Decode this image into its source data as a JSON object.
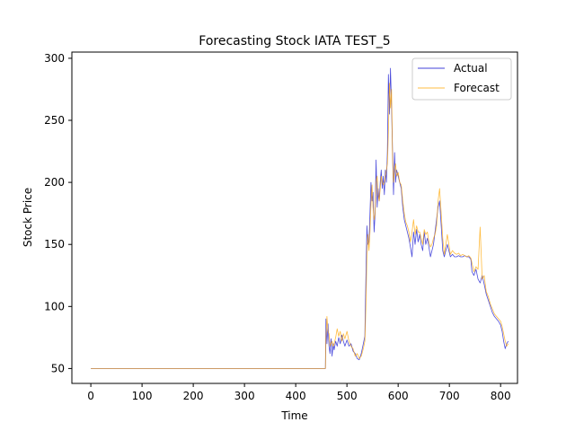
{
  "chart_data": {
    "type": "line",
    "title": "Forecasting Stock IATA TEST_5",
    "xlabel": "Time",
    "ylabel": "Stock Price",
    "xlim": [
      -37,
      833
    ],
    "ylim": [
      38,
      305
    ],
    "xticks": [
      0,
      100,
      200,
      300,
      400,
      500,
      600,
      700,
      800
    ],
    "yticks": [
      50,
      100,
      150,
      200,
      250,
      300
    ],
    "grid": false,
    "legend_position": "top-right",
    "series": [
      {
        "name": "Actual",
        "color": "#0000cc",
        "points": [
          [
            0,
            50
          ],
          [
            100,
            50
          ],
          [
            200,
            50
          ],
          [
            300,
            50
          ],
          [
            400,
            50
          ],
          [
            458,
            50
          ],
          [
            459,
            90
          ],
          [
            461,
            70
          ],
          [
            463,
            86
          ],
          [
            465,
            68
          ],
          [
            467,
            62
          ],
          [
            469,
            74
          ],
          [
            471,
            60
          ],
          [
            473,
            70
          ],
          [
            475,
            65
          ],
          [
            478,
            72
          ],
          [
            481,
            68
          ],
          [
            484,
            75
          ],
          [
            487,
            70
          ],
          [
            490,
            77
          ],
          [
            493,
            72
          ],
          [
            496,
            68
          ],
          [
            500,
            73
          ],
          [
            504,
            68
          ],
          [
            508,
            70
          ],
          [
            512,
            64
          ],
          [
            516,
            62
          ],
          [
            520,
            58
          ],
          [
            524,
            57
          ],
          [
            528,
            62
          ],
          [
            532,
            70
          ],
          [
            535,
            76
          ],
          [
            537,
            120
          ],
          [
            539,
            165
          ],
          [
            541,
            150
          ],
          [
            543,
            152
          ],
          [
            545,
            175
          ],
          [
            547,
            200
          ],
          [
            549,
            185
          ],
          [
            551,
            192
          ],
          [
            553,
            160
          ],
          [
            555,
            175
          ],
          [
            557,
            218
          ],
          [
            559,
            180
          ],
          [
            561,
            195
          ],
          [
            563,
            185
          ],
          [
            565,
            200
          ],
          [
            567,
            210
          ],
          [
            569,
            195
          ],
          [
            571,
            205
          ],
          [
            573,
            190
          ],
          [
            575,
            210
          ],
          [
            577,
            200
          ],
          [
            579,
            225
          ],
          [
            581,
            287
          ],
          [
            583,
            255
          ],
          [
            585,
            292
          ],
          [
            587,
            262
          ],
          [
            589,
            225
          ],
          [
            591,
            190
          ],
          [
            593,
            224
          ],
          [
            595,
            200
          ],
          [
            597,
            210
          ],
          [
            600,
            205
          ],
          [
            603,
            200
          ],
          [
            606,
            195
          ],
          [
            609,
            180
          ],
          [
            612,
            170
          ],
          [
            615,
            165
          ],
          [
            618,
            160
          ],
          [
            621,
            155
          ],
          [
            624,
            148
          ],
          [
            627,
            140
          ],
          [
            630,
            160
          ],
          [
            633,
            150
          ],
          [
            636,
            162
          ],
          [
            639,
            152
          ],
          [
            642,
            158
          ],
          [
            645,
            150
          ],
          [
            648,
            145
          ],
          [
            651,
            160
          ],
          [
            654,
            150
          ],
          [
            657,
            155
          ],
          [
            660,
            148
          ],
          [
            663,
            140
          ],
          [
            666,
            145
          ],
          [
            669,
            150
          ],
          [
            672,
            160
          ],
          [
            675,
            170
          ],
          [
            678,
            180
          ],
          [
            681,
            185
          ],
          [
            684,
            165
          ],
          [
            687,
            145
          ],
          [
            690,
            140
          ],
          [
            693,
            145
          ],
          [
            696,
            150
          ],
          [
            699,
            145
          ],
          [
            702,
            140
          ],
          [
            706,
            142
          ],
          [
            710,
            140
          ],
          [
            714,
            140
          ],
          [
            718,
            141
          ],
          [
            722,
            140
          ],
          [
            726,
            140
          ],
          [
            730,
            141
          ],
          [
            734,
            140
          ],
          [
            738,
            140
          ],
          [
            742,
            138
          ],
          [
            744,
            128
          ],
          [
            748,
            125
          ],
          [
            752,
            130
          ],
          [
            756,
            122
          ],
          [
            760,
            119
          ],
          [
            764,
            125
          ],
          [
            768,
            118
          ],
          [
            772,
            110
          ],
          [
            776,
            105
          ],
          [
            780,
            100
          ],
          [
            784,
            95
          ],
          [
            788,
            92
          ],
          [
            792,
            90
          ],
          [
            796,
            88
          ],
          [
            800,
            85
          ],
          [
            803,
            80
          ],
          [
            806,
            72
          ],
          [
            809,
            66
          ],
          [
            812,
            70
          ],
          [
            815,
            72
          ]
        ]
      },
      {
        "name": "Forecast",
        "color": "#ffa500",
        "points": [
          [
            0,
            50
          ],
          [
            100,
            50
          ],
          [
            200,
            50
          ],
          [
            300,
            50
          ],
          [
            400,
            50
          ],
          [
            458,
            50
          ],
          [
            459,
            75
          ],
          [
            461,
            92
          ],
          [
            463,
            80
          ],
          [
            465,
            78
          ],
          [
            467,
            68
          ],
          [
            469,
            70
          ],
          [
            471,
            72
          ],
          [
            473,
            68
          ],
          [
            475,
            70
          ],
          [
            478,
            75
          ],
          [
            481,
            82
          ],
          [
            484,
            76
          ],
          [
            487,
            80
          ],
          [
            490,
            72
          ],
          [
            493,
            78
          ],
          [
            496,
            74
          ],
          [
            500,
            80
          ],
          [
            504,
            72
          ],
          [
            508,
            68
          ],
          [
            512,
            66
          ],
          [
            516,
            60
          ],
          [
            520,
            62
          ],
          [
            524,
            58
          ],
          [
            528,
            60
          ],
          [
            532,
            66
          ],
          [
            535,
            72
          ],
          [
            537,
            98
          ],
          [
            539,
            140
          ],
          [
            541,
            158
          ],
          [
            543,
            145
          ],
          [
            545,
            160
          ],
          [
            547,
            182
          ],
          [
            549,
            198
          ],
          [
            551,
            180
          ],
          [
            553,
            170
          ],
          [
            555,
            175
          ],
          [
            557,
            200
          ],
          [
            559,
            205
          ],
          [
            561,
            190
          ],
          [
            563,
            185
          ],
          [
            565,
            195
          ],
          [
            567,
            205
          ],
          [
            569,
            200
          ],
          [
            571,
            198
          ],
          [
            573,
            200
          ],
          [
            575,
            205
          ],
          [
            577,
            210
          ],
          [
            579,
            215
          ],
          [
            581,
            240
          ],
          [
            583,
            280
          ],
          [
            585,
            260
          ],
          [
            587,
            275
          ],
          [
            589,
            220
          ],
          [
            591,
            200
          ],
          [
            593,
            210
          ],
          [
            595,
            215
          ],
          [
            597,
            205
          ],
          [
            600,
            208
          ],
          [
            603,
            200
          ],
          [
            606,
            198
          ],
          [
            609,
            185
          ],
          [
            612,
            175
          ],
          [
            615,
            168
          ],
          [
            618,
            165
          ],
          [
            621,
            160
          ],
          [
            624,
            152
          ],
          [
            627,
            160
          ],
          [
            630,
            170
          ],
          [
            633,
            158
          ],
          [
            636,
            165
          ],
          [
            639,
            160
          ],
          [
            642,
            160
          ],
          [
            645,
            155
          ],
          [
            648,
            150
          ],
          [
            651,
            162
          ],
          [
            654,
            158
          ],
          [
            657,
            160
          ],
          [
            660,
            152
          ],
          [
            663,
            148
          ],
          [
            666,
            150
          ],
          [
            669,
            155
          ],
          [
            672,
            158
          ],
          [
            675,
            165
          ],
          [
            678,
            185
          ],
          [
            681,
            195
          ],
          [
            684,
            175
          ],
          [
            687,
            155
          ],
          [
            690,
            142
          ],
          [
            693,
            150
          ],
          [
            696,
            158
          ],
          [
            699,
            150
          ],
          [
            702,
            142
          ],
          [
            706,
            145
          ],
          [
            710,
            143
          ],
          [
            714,
            142
          ],
          [
            718,
            143
          ],
          [
            722,
            141
          ],
          [
            726,
            142
          ],
          [
            730,
            141
          ],
          [
            734,
            140
          ],
          [
            738,
            141
          ],
          [
            742,
            139
          ],
          [
            744,
            135
          ],
          [
            748,
            128
          ],
          [
            752,
            132
          ],
          [
            756,
            130
          ],
          [
            760,
            164
          ],
          [
            764,
            122
          ],
          [
            768,
            125
          ],
          [
            772,
            112
          ],
          [
            776,
            108
          ],
          [
            780,
            102
          ],
          [
            784,
            98
          ],
          [
            788,
            94
          ],
          [
            792,
            92
          ],
          [
            796,
            90
          ],
          [
            800,
            88
          ],
          [
            803,
            84
          ],
          [
            806,
            78
          ],
          [
            809,
            72
          ],
          [
            812,
            68
          ],
          [
            815,
            70
          ]
        ]
      }
    ]
  }
}
